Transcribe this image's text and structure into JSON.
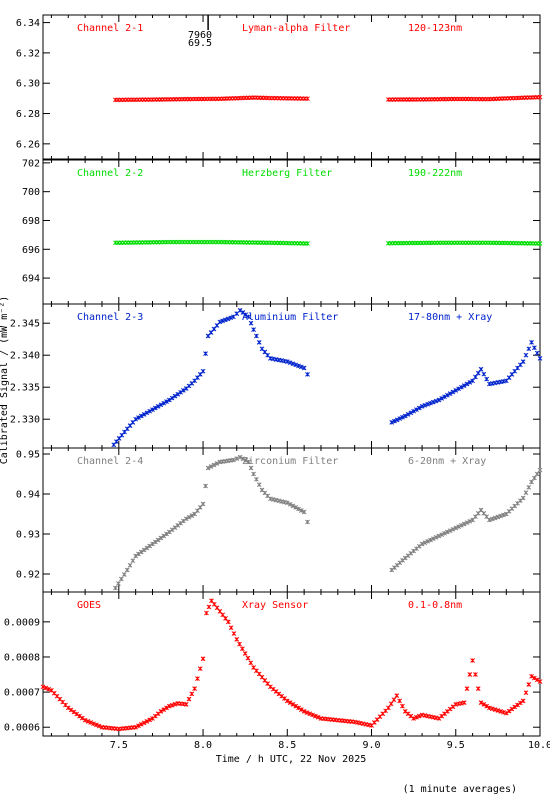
{
  "chart_data": {
    "type": "scatter",
    "xlabel": "Time / h UTC, 22 Nov 2025",
    "ylabel": "Calibrated Signal / (mW m⁻²)",
    "xlim": [
      7.05,
      10.0
    ],
    "xticks": [
      "7.5",
      "8.0",
      "8.5",
      "9.0",
      "9.5",
      "10.0"
    ],
    "footnote": "(1 minute averages)",
    "marker_labels": [
      "7960",
      "69.5"
    ],
    "panels": [
      {
        "label": "Channel 2-1",
        "filter": "Lyman-alpha Filter",
        "band": "120-123nm",
        "color": "#ff0000",
        "ylim": [
          6.25,
          6.345
        ],
        "yticks": [
          "6.34",
          "6.32",
          "6.30",
          "6.28",
          "6.26"
        ],
        "segments": [
          {
            "x": [
              7.48,
              7.7,
              7.9,
              8.1,
              8.3,
              8.4,
              8.62
            ],
            "y": [
              6.289,
              6.2892,
              6.2895,
              6.2897,
              6.2905,
              6.2902,
              6.2898
            ]
          },
          {
            "x": [
              9.1,
              9.3,
              9.5,
              9.7,
              9.85,
              10.0
            ],
            "y": [
              6.2892,
              6.2893,
              6.2896,
              6.2895,
              6.2902,
              6.2908
            ]
          }
        ]
      },
      {
        "label": "Channel 2-2",
        "filter": "Herzberg Filter",
        "band": "190-222nm",
        "color": "#00dd00",
        "ylim": [
          692.2,
          702.2
        ],
        "yticks": [
          "702",
          "700",
          "698",
          "696",
          "694"
        ],
        "segments": [
          {
            "x": [
              7.48,
              7.8,
              8.1,
              8.4,
              8.62
            ],
            "y": [
              696.45,
              696.5,
              696.5,
              696.45,
              696.4
            ]
          },
          {
            "x": [
              9.1,
              9.4,
              9.7,
              10.0
            ],
            "y": [
              696.42,
              696.45,
              696.45,
              696.4
            ]
          }
        ]
      },
      {
        "label": "Channel 2-3",
        "filter": "Aluminium Filter",
        "band": "17-80nm + Xray",
        "color": "#0022cc",
        "ylim": [
          2.3255,
          2.348
        ],
        "yticks": [
          "2.345",
          "2.340",
          "2.335",
          "2.330"
        ],
        "segments": [
          {
            "x": [
              7.47,
              7.55,
              7.6,
              7.7,
              7.8,
              7.9,
              7.95,
              8.0,
              8.03,
              8.1,
              8.18,
              8.22,
              8.27,
              8.3,
              8.35,
              8.4,
              8.5,
              8.6,
              8.62
            ],
            "y": [
              2.326,
              2.3285,
              2.33,
              2.3315,
              2.333,
              2.3348,
              2.336,
              2.3375,
              2.343,
              2.3452,
              2.346,
              2.347,
              2.346,
              2.344,
              2.341,
              2.3395,
              2.339,
              2.338,
              2.337
            ]
          },
          {
            "x": [
              9.12,
              9.2,
              9.3,
              9.4,
              9.5,
              9.6,
              9.65,
              9.7,
              9.8,
              9.9,
              9.95,
              10.0
            ],
            "y": [
              2.3295,
              2.3305,
              2.332,
              2.333,
              2.3345,
              2.336,
              2.3378,
              2.3355,
              2.336,
              2.339,
              2.342,
              2.3395
            ]
          }
        ]
      },
      {
        "label": "Channel 2-4",
        "filter": "Zirconium Filter",
        "band": "6-20nm + Xray",
        "color": "#808080",
        "ylim": [
          0.9155,
          0.9515
        ],
        "yticks": [
          "0.95",
          "0.94",
          "0.93",
          "0.92"
        ],
        "segments": [
          {
            "x": [
              7.48,
              7.55,
              7.6,
              7.7,
              7.8,
              7.9,
              7.95,
              8.0,
              8.03,
              8.1,
              8.18,
              8.22,
              8.27,
              8.3,
              8.35,
              8.4,
              8.5,
              8.6,
              8.62
            ],
            "y": [
              0.9165,
              0.921,
              0.9245,
              0.9275,
              0.9305,
              0.9338,
              0.935,
              0.9375,
              0.9465,
              0.948,
              0.9485,
              0.9492,
              0.948,
              0.945,
              0.941,
              0.9388,
              0.9378,
              0.9355,
              0.933
            ]
          },
          {
            "x": [
              9.12,
              9.2,
              9.3,
              9.4,
              9.5,
              9.6,
              9.65,
              9.7,
              9.8,
              9.9,
              9.95,
              10.0
            ],
            "y": [
              0.921,
              0.924,
              0.9275,
              0.9295,
              0.9315,
              0.9335,
              0.936,
              0.9335,
              0.935,
              0.939,
              0.943,
              0.946
            ]
          }
        ]
      },
      {
        "label": "GOES",
        "filter": "Xray Sensor",
        "band": "0.1-0.8nm",
        "color": "#ff0000",
        "ylim": [
          0.000575,
          0.000985
        ],
        "yticks": [
          "0.0009",
          "0.0008",
          "0.0007",
          "0.0006"
        ],
        "segments": [
          {
            "x": [
              7.05,
              7.1,
              7.15,
              7.2,
              7.3,
              7.4,
              7.5,
              7.6,
              7.7,
              7.75,
              7.8,
              7.85,
              7.9,
              7.95,
              8.0,
              8.02,
              8.05,
              8.1,
              8.15,
              8.2,
              8.3,
              8.4,
              8.5,
              8.6,
              8.7,
              8.8,
              8.9,
              9.0,
              9.1,
              9.15,
              9.2,
              9.25,
              9.3,
              9.4,
              9.5,
              9.55,
              9.6,
              9.65,
              9.7,
              9.8,
              9.9,
              9.95,
              10.0
            ],
            "y": [
              0.000715,
              0.000705,
              0.00068,
              0.000655,
              0.00062,
              0.0006,
              0.000595,
              0.0006,
              0.000625,
              0.000645,
              0.00066,
              0.000668,
              0.000665,
              0.00071,
              0.000795,
              0.000925,
              0.00096,
              0.00093,
              0.0009,
              0.00085,
              0.00077,
              0.000715,
              0.000675,
              0.000645,
              0.000625,
              0.00062,
              0.000615,
              0.000605,
              0.000655,
              0.00069,
              0.000645,
              0.000625,
              0.000635,
              0.000625,
              0.000665,
              0.00067,
              0.00079,
              0.00067,
              0.000655,
              0.00064,
              0.000675,
              0.000745,
              0.00073
            ]
          }
        ]
      }
    ]
  }
}
